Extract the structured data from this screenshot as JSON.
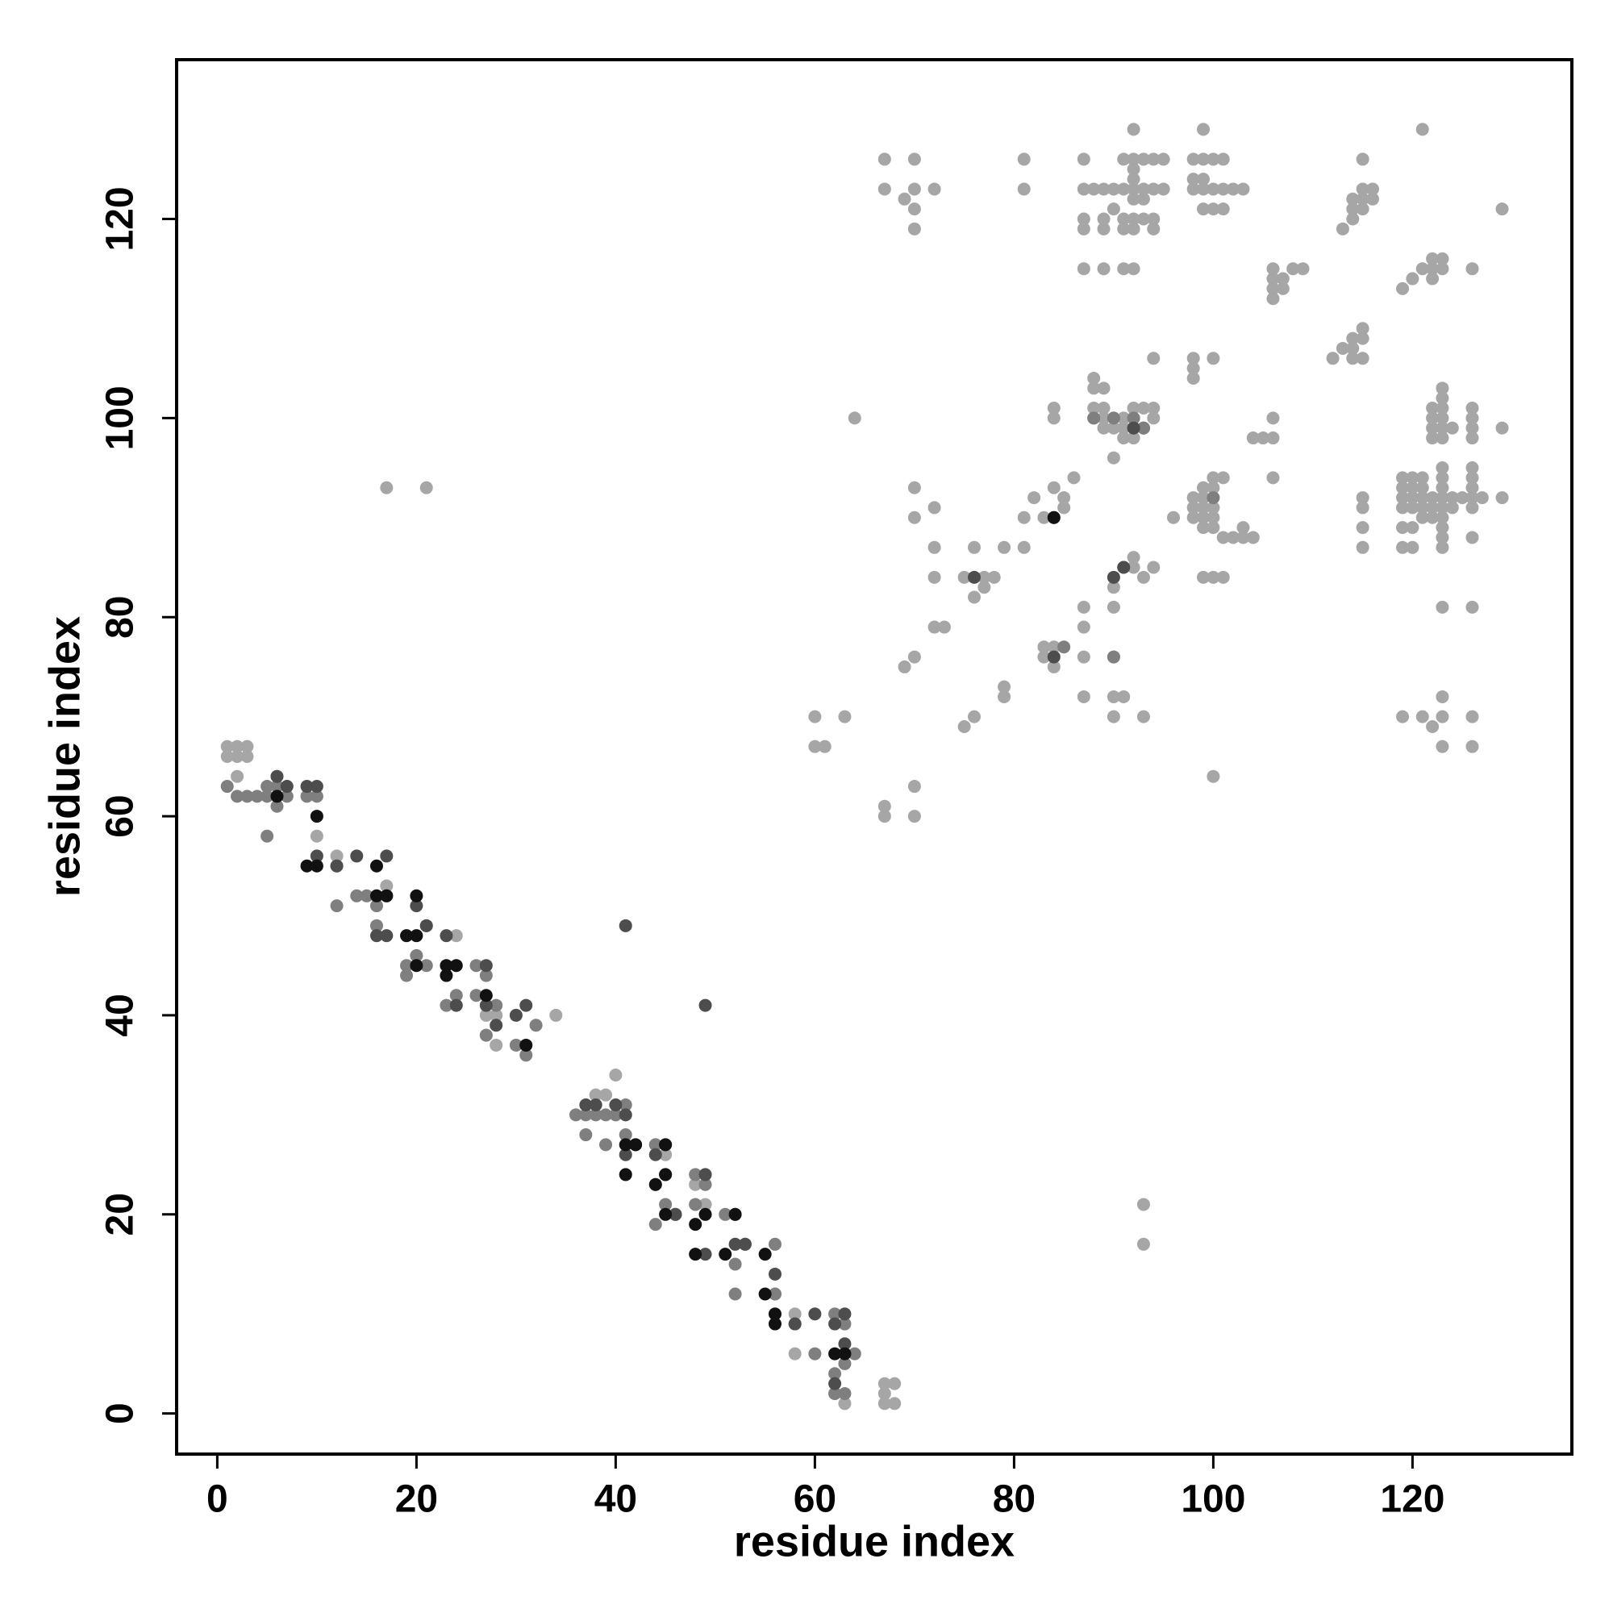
{
  "chart_data": {
    "type": "scatter",
    "x_label": "residue index",
    "y_label": "residue index",
    "xlim": [
      -4.08,
      136
    ],
    "ylim": [
      -4.08,
      136
    ],
    "xticks": [
      0,
      20,
      40,
      60,
      80,
      100,
      120
    ],
    "yticks": [
      0,
      20,
      40,
      60,
      80,
      100,
      120
    ],
    "series": [
      {
        "color": "#a6a6a6",
        "x": [
          1,
          2,
          3,
          1,
          2,
          3,
          2,
          6,
          10,
          12,
          17,
          21,
          24,
          27,
          28,
          27,
          28,
          34,
          40,
          38,
          39,
          45,
          44,
          45,
          49,
          48,
          49,
          53,
          56,
          58,
          58,
          67,
          68,
          67,
          67,
          68,
          63,
          62,
          17,
          21,
          64,
          60,
          63,
          60,
          61,
          67,
          67,
          70,
          70,
          69,
          70,
          72,
          73,
          72,
          72,
          72,
          70,
          70,
          67,
          70,
          67,
          69,
          70,
          72,
          70,
          70,
          81,
          81,
          75,
          77,
          78,
          77,
          76,
          76,
          79,
          81,
          81,
          79,
          79,
          75,
          76,
          83,
          85,
          84,
          86,
          85,
          82,
          83,
          83,
          84,
          84,
          87,
          87,
          87,
          87,
          90,
          90,
          92,
          92,
          93,
          94,
          90,
          90,
          91,
          90,
          93,
          84,
          84,
          88,
          88,
          89,
          88,
          89,
          88,
          89,
          90,
          91,
          92,
          89,
          90,
          91,
          92,
          93,
          91,
          92,
          93,
          94,
          94,
          92,
          90,
          94,
          96,
          98,
          99,
          99,
          100,
          100,
          101,
          98,
          99,
          100,
          98,
          99,
          100,
          99,
          100,
          101,
          102,
          103,
          104,
          103,
          99,
          100,
          101,
          98,
          98,
          98,
          100,
          104,
          105,
          106,
          106,
          106,
          106,
          106,
          106,
          106,
          107,
          107,
          108,
          109,
          87,
          87,
          88,
          89,
          90,
          91,
          92,
          93,
          94,
          95,
          87,
          87,
          89,
          89,
          90,
          91,
          91,
          92,
          93,
          94,
          92,
          94,
          92,
          93,
          92,
          92,
          91,
          92,
          93,
          94,
          95,
          92,
          87,
          89,
          91,
          92,
          99,
          98,
          99,
          100,
          101,
          98,
          99,
          98,
          99,
          100,
          101,
          102,
          103,
          99,
          100,
          101,
          113,
          114,
          114,
          115,
          114,
          115,
          116,
          116,
          115,
          115,
          119,
          120,
          121,
          122,
          122,
          123,
          122,
          123,
          126,
          112,
          113,
          114,
          114,
          115,
          115,
          114,
          115,
          121,
          129,
          122,
          122,
          122,
          122,
          123,
          123,
          123,
          123,
          123,
          123,
          124,
          126,
          126,
          126,
          126,
          129,
          119,
          120,
          121,
          119,
          120,
          121,
          119,
          120,
          121,
          122,
          123,
          124,
          125,
          126,
          127,
          119,
          120,
          121,
          122,
          123,
          124,
          119,
          120,
          121,
          122,
          123,
          119,
          120,
          123,
          123,
          123,
          123,
          123,
          123,
          126,
          126,
          126,
          126,
          126,
          129,
          115,
          115,
          115,
          115,
          123,
          126,
          119,
          121,
          122,
          123,
          123,
          123,
          126,
          126,
          100,
          93,
          93
        ],
        "y": [
          67,
          67,
          67,
          66,
          66,
          66,
          64,
          64,
          58,
          56,
          53,
          49,
          48,
          40,
          40,
          38,
          37,
          40,
          34,
          32,
          32,
          26,
          27,
          24,
          24,
          23,
          21,
          17,
          12,
          10,
          6,
          3,
          3,
          2,
          1,
          1,
          1,
          2,
          93,
          93,
          100,
          70,
          70,
          67,
          67,
          61,
          60,
          63,
          60,
          75,
          76,
          79,
          79,
          84,
          87,
          91,
          90,
          93,
          126,
          126,
          123,
          122,
          123,
          123,
          121,
          119,
          126,
          123,
          84,
          84,
          84,
          83,
          82,
          87,
          87,
          87,
          90,
          73,
          72,
          69,
          70,
          90,
          91,
          93,
          94,
          92,
          92,
          76,
          77,
          77,
          75,
          76,
          72,
          79,
          81,
          81,
          83,
          85,
          86,
          84,
          85,
          76,
          72,
          72,
          70,
          70,
          100,
          101,
          104,
          103,
          103,
          101,
          101,
          100,
          100,
          100,
          100,
          100,
          99,
          99,
          99,
          99,
          99,
          98,
          98,
          101,
          101,
          100,
          101,
          96,
          106,
          90,
          92,
          92,
          93,
          93,
          94,
          94,
          91,
          91,
          91,
          90,
          90,
          90,
          89,
          89,
          88,
          88,
          88,
          88,
          89,
          84,
          84,
          84,
          106,
          105,
          104,
          106,
          98,
          98,
          98,
          100,
          94,
          115,
          114,
          113,
          112,
          113,
          114,
          115,
          115,
          126,
          123,
          123,
          123,
          123,
          123,
          123,
          123,
          123,
          123,
          120,
          119,
          120,
          119,
          121,
          120,
          119,
          120,
          120,
          120,
          119,
          119,
          122,
          122,
          124,
          125,
          126,
          126,
          126,
          126,
          126,
          129,
          115,
          115,
          115,
          115,
          129,
          126,
          126,
          126,
          126,
          124,
          124,
          123,
          123,
          123,
          123,
          123,
          123,
          121,
          121,
          121,
          119,
          120,
          121,
          122,
          122,
          123,
          123,
          122,
          126,
          121,
          113,
          114,
          115,
          115,
          116,
          116,
          114,
          115,
          115,
          106,
          107,
          107,
          108,
          108,
          109,
          106,
          106,
          129,
          121,
          101,
          100,
          99,
          98,
          103,
          102,
          101,
          100,
          99,
          98,
          99,
          101,
          100,
          99,
          98,
          99,
          94,
          94,
          94,
          93,
          93,
          93,
          92,
          92,
          92,
          92,
          92,
          92,
          92,
          92,
          92,
          91,
          91,
          91,
          91,
          91,
          91,
          89,
          89,
          90,
          90,
          90,
          87,
          87,
          95,
          94,
          93,
          89,
          88,
          87,
          95,
          94,
          93,
          91,
          88,
          92,
          92,
          91,
          89,
          87,
          81,
          81,
          70,
          70,
          69,
          70,
          72,
          67,
          70,
          67,
          64,
          21,
          17
        ]
      },
      {
        "color": "#7f7f7f",
        "x": [
          1,
          2,
          3,
          4,
          5,
          5,
          6,
          6,
          7,
          9,
          10,
          5,
          12,
          12,
          14,
          15,
          16,
          17,
          16,
          19,
          19,
          20,
          21,
          23,
          24,
          26,
          26,
          27,
          28,
          27,
          30,
          31,
          32,
          36,
          37,
          38,
          39,
          40,
          41,
          37,
          39,
          41,
          44,
          45,
          44,
          44,
          45,
          46,
          48,
          49,
          48,
          51,
          52,
          52,
          52,
          56,
          56,
          58,
          60,
          62,
          63,
          62,
          63,
          64,
          63,
          62,
          84,
          91,
          90,
          88,
          92,
          93,
          90,
          100,
          93,
          85,
          92
        ],
        "y": [
          63,
          62,
          62,
          62,
          62,
          63,
          63,
          61,
          62,
          62,
          62,
          58,
          55,
          51,
          52,
          52,
          51,
          52,
          49,
          45,
          44,
          46,
          45,
          41,
          42,
          45,
          42,
          44,
          41,
          38,
          37,
          36,
          39,
          30,
          30,
          30,
          30,
          30,
          31,
          28,
          27,
          28,
          27,
          24,
          23,
          19,
          21,
          20,
          24,
          23,
          21,
          20,
          20,
          15,
          12,
          17,
          12,
          9,
          6,
          10,
          9,
          2,
          2,
          6,
          5,
          4,
          90,
          85,
          100,
          100,
          99,
          99,
          76,
          92,
          99,
          77,
          100
        ]
      },
      {
        "color": "#4d4d4d",
        "x": [
          6,
          7,
          10,
          9,
          10,
          14,
          12,
          17,
          20,
          16,
          17,
          21,
          23,
          27,
          24,
          27,
          28,
          30,
          31,
          40,
          37,
          38,
          41,
          42,
          41,
          45,
          44,
          46,
          49,
          49,
          52,
          53,
          56,
          58,
          60,
          62,
          63,
          63,
          62,
          41,
          49,
          76,
          84,
          90,
          91,
          92
        ],
        "y": [
          64,
          63,
          63,
          63,
          56,
          56,
          55,
          56,
          51,
          48,
          48,
          49,
          48,
          45,
          41,
          41,
          39,
          40,
          41,
          31,
          31,
          31,
          30,
          27,
          26,
          27,
          26,
          20,
          16,
          24,
          17,
          17,
          14,
          9,
          10,
          9,
          7,
          10,
          3,
          49,
          41,
          84,
          76,
          84,
          85,
          99
        ]
      },
      {
        "color": "#111111",
        "x": [
          6,
          10,
          9,
          10,
          16,
          17,
          16,
          20,
          19,
          20,
          20,
          23,
          24,
          23,
          27,
          31,
          41,
          42,
          41,
          45,
          45,
          44,
          45,
          48,
          49,
          48,
          52,
          51,
          55,
          56,
          56,
          55,
          62,
          84,
          63
        ],
        "y": [
          62,
          60,
          55,
          55,
          52,
          52,
          55,
          52,
          48,
          48,
          45,
          45,
          45,
          44,
          42,
          37,
          27,
          27,
          24,
          27,
          24,
          23,
          20,
          19,
          20,
          16,
          20,
          16,
          12,
          10,
          9,
          16,
          6,
          90,
          6
        ]
      }
    ]
  }
}
